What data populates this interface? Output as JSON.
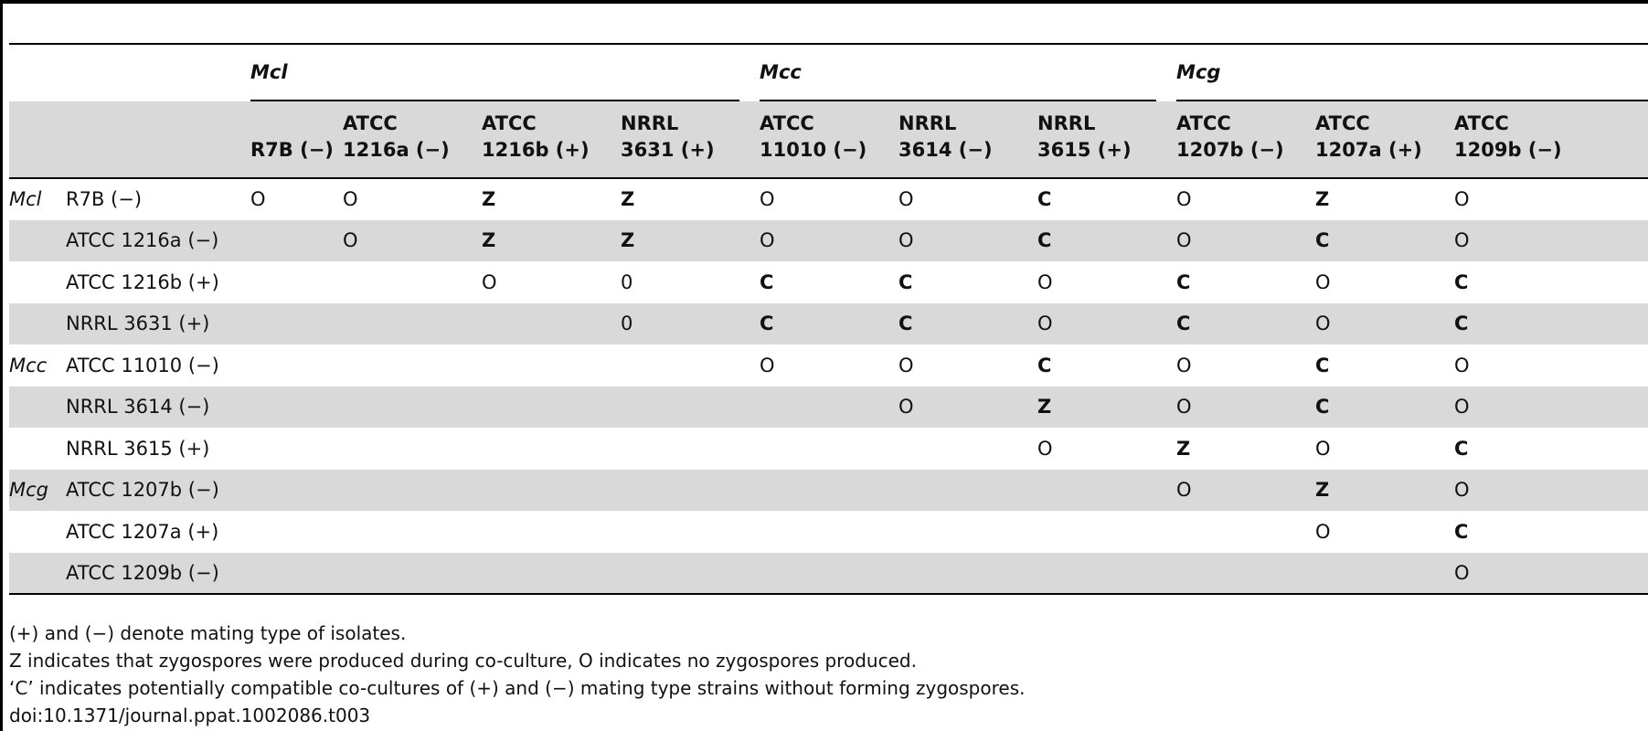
{
  "groups": [
    {
      "label": "Mcl",
      "span": 4
    },
    {
      "label": "Mcc",
      "span": 3
    },
    {
      "label": "Mcg",
      "span": 3
    }
  ],
  "columns": [
    {
      "line1": "",
      "line2": "R7B (−)"
    },
    {
      "line1": "ATCC",
      "line2": "1216a (−)"
    },
    {
      "line1": "ATCC",
      "line2": "1216b (+)"
    },
    {
      "line1": "NRRL",
      "line2": "3631 (+)"
    },
    {
      "line1": "ATCC",
      "line2": "11010 (−)"
    },
    {
      "line1": "NRRL",
      "line2": "3614 (−)"
    },
    {
      "line1": "NRRL",
      "line2": "3615 (+)"
    },
    {
      "line1": "ATCC",
      "line2": "1207b (−)"
    },
    {
      "line1": "ATCC",
      "line2": "1207a (+)"
    },
    {
      "line1": "ATCC",
      "line2": "1209b (−)"
    }
  ],
  "rows": [
    {
      "group": "Mcl",
      "strain": "R7B (−)",
      "cells": [
        "O",
        "O",
        "Z",
        "Z",
        "O",
        "O",
        "C",
        "O",
        "Z",
        "O"
      ]
    },
    {
      "group": "",
      "strain": "ATCC 1216a (−)",
      "cells": [
        "",
        "O",
        "Z",
        "Z",
        "O",
        "O",
        "C",
        "O",
        "C",
        "O"
      ]
    },
    {
      "group": "",
      "strain": "ATCC 1216b (+)",
      "cells": [
        "",
        "",
        "O",
        "0",
        "C",
        "C",
        "O",
        "C",
        "O",
        "C"
      ]
    },
    {
      "group": "",
      "strain": "NRRL 3631 (+)",
      "cells": [
        "",
        "",
        "",
        "0",
        "C",
        "C",
        "O",
        "C",
        "O",
        "C"
      ]
    },
    {
      "group": "Mcc",
      "strain": "ATCC 11010 (−)",
      "cells": [
        "",
        "",
        "",
        "",
        "O",
        "O",
        "C",
        "O",
        "C",
        "O"
      ]
    },
    {
      "group": "",
      "strain": "NRRL 3614 (−)",
      "cells": [
        "",
        "",
        "",
        "",
        "",
        "O",
        "Z",
        "O",
        "C",
        "O"
      ]
    },
    {
      "group": "",
      "strain": "NRRL 3615 (+)",
      "cells": [
        "",
        "",
        "",
        "",
        "",
        "",
        "O",
        "Z",
        "O",
        "C"
      ]
    },
    {
      "group": "Mcg",
      "strain": "ATCC 1207b (−)",
      "cells": [
        "",
        "",
        "",
        "",
        "",
        "",
        "",
        "O",
        "Z",
        "O"
      ]
    },
    {
      "group": "",
      "strain": "ATCC 1207a (+)",
      "cells": [
        "",
        "",
        "",
        "",
        "",
        "",
        "",
        "",
        "O",
        "C"
      ]
    },
    {
      "group": "",
      "strain": "ATCC 1209b (−)",
      "cells": [
        "",
        "",
        "",
        "",
        "",
        "",
        "",
        "",
        "",
        "O"
      ]
    }
  ],
  "footnotes": [
    "(+) and (−) denote mating type of isolates.",
    "Z indicates that zygospores were produced during co-culture, O indicates no zygospores produced.",
    "‘C’ indicates potentially compatible co-cultures of (+) and (−) mating type strains without forming zygospores.",
    "doi:10.1371/journal.ppat.1002086.t003"
  ]
}
